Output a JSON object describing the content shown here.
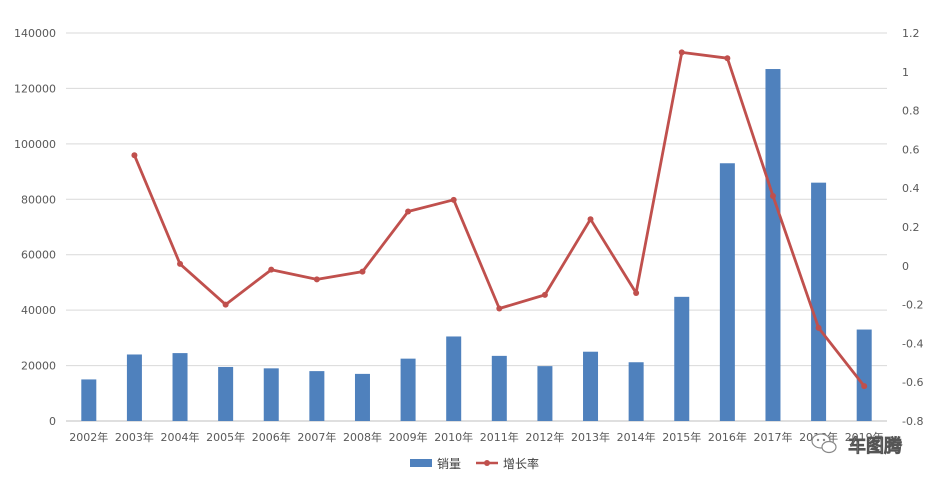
{
  "chart_data": {
    "type": "bar",
    "categories": [
      "2002年",
      "2003年",
      "2004年",
      "2005年",
      "2006年",
      "2007年",
      "2008年",
      "2009年",
      "2010年",
      "2011年",
      "2012年",
      "2013年",
      "2014年",
      "2015年",
      "2016年",
      "2017年",
      "2018年",
      "2019年"
    ],
    "series": [
      {
        "name": "销量",
        "type": "bar",
        "axis": "left",
        "color": "#4f81bd",
        "values": [
          15000,
          24000,
          24500,
          19500,
          19000,
          18000,
          17000,
          22500,
          30500,
          23500,
          19800,
          25000,
          21200,
          44800,
          93000,
          127000,
          86000,
          33000
        ]
      },
      {
        "name": "增长率",
        "type": "line",
        "axis": "right",
        "color": "#c0504d",
        "values": [
          null,
          0.57,
          0.01,
          -0.2,
          -0.02,
          -0.07,
          -0.03,
          0.28,
          0.34,
          -0.22,
          -0.15,
          0.24,
          -0.14,
          1.1,
          1.07,
          0.36,
          -0.32,
          -0.62
        ]
      }
    ],
    "y_left": {
      "min": 0,
      "max": 140000,
      "ticks": [
        0,
        20000,
        40000,
        60000,
        80000,
        100000,
        120000,
        140000
      ]
    },
    "y_right": {
      "min": -0.8,
      "max": 1.2,
      "ticks": [
        -0.8,
        -0.6,
        -0.4,
        -0.2,
        0,
        0.2,
        0.4,
        0.6,
        0.8,
        1,
        1.2
      ]
    },
    "grid": true,
    "legend_position": "bottom-center",
    "title": "",
    "xlabel": "",
    "ylabel": ""
  },
  "legend": {
    "bar_label": "销量",
    "line_label": "增长率"
  },
  "watermark": {
    "text": "车图腾",
    "icon": "wechat-icon"
  }
}
